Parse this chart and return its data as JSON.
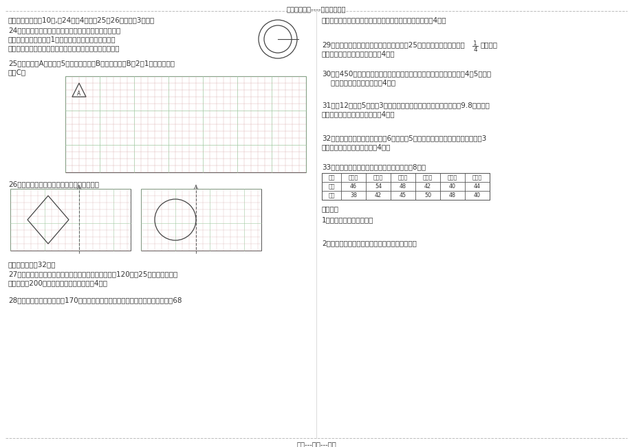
{
  "title_top": "精选优质文档----倾情为你奉上",
  "footer": "专心---专注---专业",
  "bg_color": "#ffffff",
  "text_color": "#333333",
  "line_color": "#888888",
  "grid_color": "#d4a0a0",
  "grid_color2": "#a0c8a0",
  "border_color": "#555555",
  "section5_title": "五、动手操作。（10分,第24小题4分，第25、26小题分别3分。）",
  "q24_text1": "24、右图是一个圆形花坛的平面图，现在设计师要在圆形",
  "q24_text2": "花坛的周围修一条宽是1厘米的环形小路，请你帮他画出",
  "q24_text3": "这条小路，并用阴影表示出来，并计算出环形小路的面积。",
  "q25_text1": "25、把三角形A向右平移5格，得到三角形B，再将三角形B按2：1扩大，得到三",
  "q25_text2": "角形C。",
  "q26_text": "26、根据对称轴画出给定图形的轴对称图形。",
  "q27_text1": "27、小太阳服装厂生产一批儿童服装，计划每小时生产120套，25小时完成。实际",
  "q27_text2": "每小时生产200套，实际多少小时完成？（4分）",
  "q28_text1": "28、甲乙两地之间的公路长170千米。一辆汽车从甲地开往乙地，头两小时行驶了68",
  "q28_cont": "千米，照这样计算，几小时可以到达乙地？（用比例解）（4分）",
  "q29_text1": "29、某小学开展第二课堂活动，美术小组有25人，比航模小组的人数多",
  "q29_text2": "，航模小",
  "q29_text3": "组有多少人？（列方程解答）（4分）",
  "q30_text1": "30、把450棵树苗分给一中队、二中队，使两个中队分得的树苗的比是4：5，每个",
  "q30_text2": "    中队各分到树苗多少棵？（4分）",
  "q31_text1": "31、长12米，宽5米，高3米的教室，抹上石灰，扣除门窗黑板面积9.8平方米，",
  "q31_text2": "抹石灰的面积有多少平方米？（4分）",
  "q32_text1": "32、一个圆锥形钢锭，底面直径6分米，高5分米，体积多少？如果每立方分米重3",
  "q32_text2": "千克，这个钢锭重几千克？（4分）",
  "q33_title": "33、实验小学各年级男、女学生人数如下：（8分）",
  "q33_table_headers": [
    "年级",
    "一年级",
    "二年级",
    "三年级",
    "四年级",
    "五年级",
    "六年级"
  ],
  "q33_row1_label": "男生",
  "q33_row1": [
    46,
    54,
    48,
    42,
    40,
    44
  ],
  "q33_row2_label": "女生",
  "q33_row2": [
    38,
    42,
    45,
    50,
    48,
    40
  ],
  "q33_q1": "答问题：",
  "q33_q1_text": "1、全校学生共有多少人？",
  "q33_q2_text": "2、六年级学生人数占全校学生人数的百分之几？",
  "section6_title": "六、应用题。（32分）"
}
